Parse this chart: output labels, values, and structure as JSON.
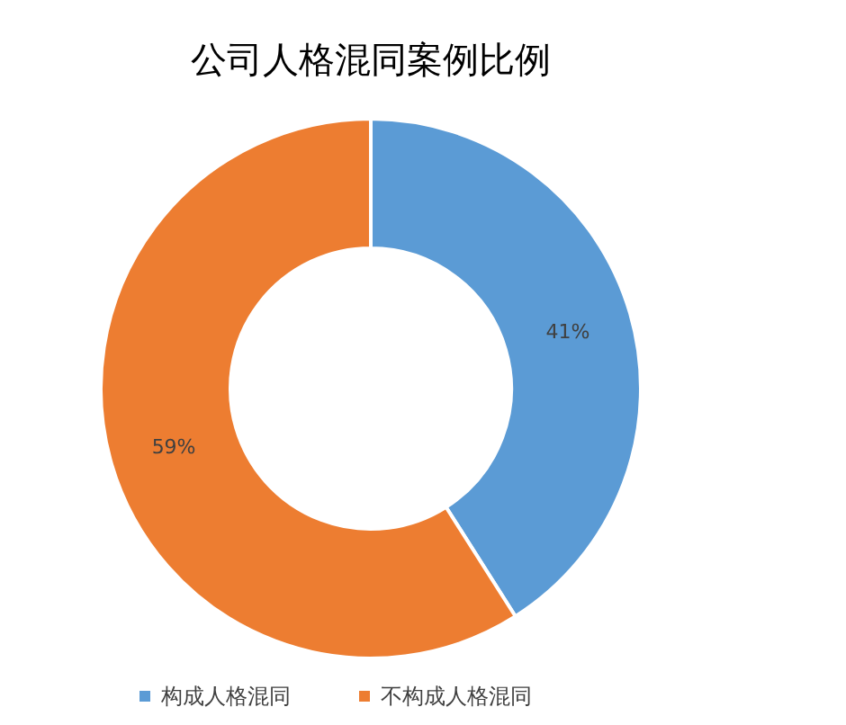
{
  "chart_data": {
    "type": "donut",
    "title": "公司人格混同案例比例",
    "categories": [
      "构成人格混同",
      "不构成人格混同"
    ],
    "values": [
      41,
      59
    ],
    "colors": [
      "#5b9bd5",
      "#ed7d31"
    ],
    "value_labels": [
      "41%",
      "59%"
    ],
    "legend": "bottom"
  }
}
